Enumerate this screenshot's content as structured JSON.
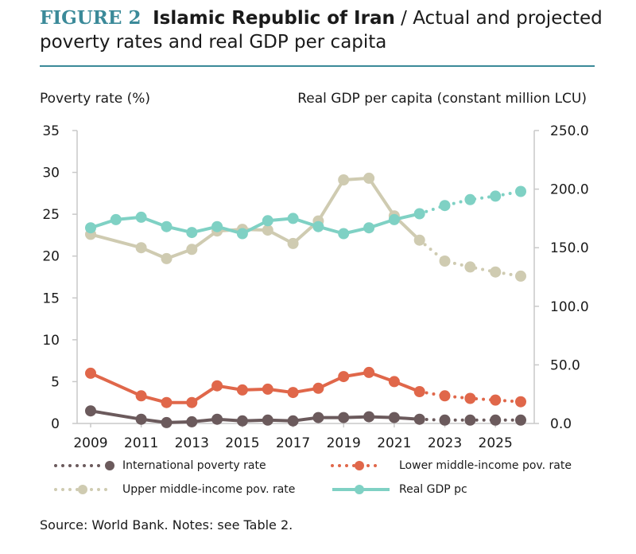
{
  "figure": {
    "label": "FIGURE 2",
    "country": "Islamic Republic of Iran",
    "title_rest": "/ Actual and projected poverty rates and real GDP per capita"
  },
  "source": "Source: World Bank. Notes: see Table 2.",
  "colors": {
    "accent": "#3b8a99",
    "international": "#6b5a5c",
    "lower": "#e0674a",
    "upper": "#cfcbb1",
    "gdp": "#7fd1c4"
  },
  "chart_data": {
    "type": "line",
    "x": [
      2009,
      2010,
      2011,
      2012,
      2013,
      2014,
      2015,
      2016,
      2017,
      2018,
      2019,
      2020,
      2021,
      2022,
      2023,
      2024,
      2025,
      2026
    ],
    "x_ticks": [
      "2009",
      "2011",
      "2013",
      "2015",
      "2017",
      "2019",
      "2021",
      "2023",
      "2025"
    ],
    "projection_start": 2022,
    "ylabel_left": "Poverty rate (%)",
    "ylabel_right": "Real GDP per capita (constant million LCU)",
    "ylim_left": [
      0,
      35
    ],
    "ylim_right": [
      0,
      250
    ],
    "y_ticks_left": [
      "0",
      "5",
      "10",
      "15",
      "20",
      "25",
      "30",
      "35"
    ],
    "y_ticks_right": [
      "0.0",
      "50.0",
      "100.0",
      "150.0",
      "200.0",
      "250.0"
    ],
    "series": [
      {
        "name": "International poverty rate",
        "axis": "left",
        "color": "#6b5a5c",
        "values": [
          1.5,
          null,
          0.5,
          0.1,
          0.2,
          0.5,
          0.3,
          0.4,
          0.3,
          0.7,
          0.7,
          0.8,
          0.7,
          0.5,
          0.4,
          0.4,
          0.4,
          0.4
        ]
      },
      {
        "name": "Lower middle-income pov. rate",
        "axis": "left",
        "color": "#e0674a",
        "values": [
          6.0,
          null,
          3.3,
          2.5,
          2.5,
          4.5,
          4.0,
          4.1,
          3.7,
          4.2,
          5.6,
          6.1,
          5.0,
          3.8,
          3.3,
          3.0,
          2.8,
          2.6
        ]
      },
      {
        "name": "Upper middle-income pov. rate",
        "axis": "left",
        "color": "#cfcbb1",
        "values": [
          22.6,
          null,
          21.0,
          19.7,
          20.8,
          23.0,
          23.2,
          23.1,
          21.5,
          24.2,
          29.1,
          29.3,
          24.8,
          21.9,
          19.4,
          18.7,
          18.1,
          17.6
        ]
      },
      {
        "name": "Real GDP pc",
        "axis": "right",
        "color": "#7fd1c4",
        "values": [
          167,
          174,
          176,
          168,
          163,
          168,
          162,
          173,
          175,
          168,
          162,
          167,
          174,
          179,
          186,
          191,
          194,
          198
        ]
      }
    ],
    "legend": "bottom"
  }
}
